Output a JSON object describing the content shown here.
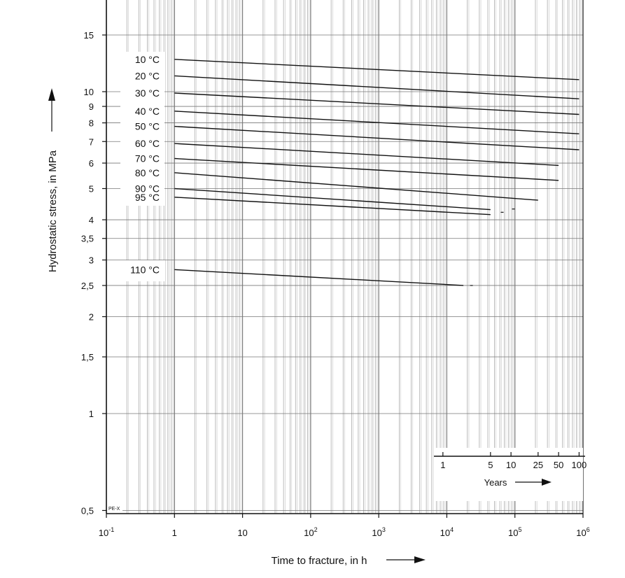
{
  "chart_data": {
    "type": "line",
    "scale": "log-log",
    "xlabel": "Time to fracture, in h",
    "ylabel": "Hydrostatic stress, in MPa",
    "xlim": [
      0.1,
      1000000
    ],
    "ylim": [
      0.5,
      20
    ],
    "grid": true,
    "material_tag": "PE-X",
    "x_ticks": [
      {
        "value": 0.1,
        "base": "10",
        "exp": "-1"
      },
      {
        "value": 1,
        "base": "1",
        "exp": ""
      },
      {
        "value": 10,
        "base": "10",
        "exp": ""
      },
      {
        "value": 100,
        "base": "10",
        "exp": "2"
      },
      {
        "value": 1000,
        "base": "10",
        "exp": "3"
      },
      {
        "value": 10000,
        "base": "10",
        "exp": "4"
      },
      {
        "value": 100000,
        "base": "10",
        "exp": "5"
      },
      {
        "value": 1000000,
        "base": "10",
        "exp": "6"
      }
    ],
    "y_ticks": [
      {
        "value": 15,
        "label": "15"
      },
      {
        "value": 10,
        "label": "10"
      },
      {
        "value": 9,
        "label": "9"
      },
      {
        "value": 8,
        "label": "8"
      },
      {
        "value": 7,
        "label": "7"
      },
      {
        "value": 6,
        "label": "6"
      },
      {
        "value": 5,
        "label": "5"
      },
      {
        "value": 4,
        "label": "4"
      },
      {
        "value": 3.5,
        "label": "3,5"
      },
      {
        "value": 3,
        "label": "3"
      },
      {
        "value": 2.5,
        "label": "2,5"
      },
      {
        "value": 2,
        "label": "2"
      },
      {
        "value": 1.5,
        "label": "1,5"
      },
      {
        "value": 1,
        "label": "1"
      },
      {
        "value": 0.5,
        "label": "0,5"
      }
    ],
    "years_scale": {
      "label": "Years",
      "ticks": [
        {
          "value": 1,
          "label": "1"
        },
        {
          "value": 5,
          "label": "5"
        },
        {
          "value": 10,
          "label": "10"
        },
        {
          "value": 25,
          "label": "25"
        },
        {
          "value": 50,
          "label": "50"
        },
        {
          "value": 100,
          "label": "100"
        }
      ]
    },
    "series": [
      {
        "name": "10 °C",
        "x": [
          1,
          876000
        ],
        "y": [
          12.6,
          10.9
        ]
      },
      {
        "name": "20 °C",
        "x": [
          1,
          876000
        ],
        "y": [
          11.2,
          9.5
        ]
      },
      {
        "name": "30 °C",
        "x": [
          1,
          876000
        ],
        "y": [
          9.9,
          8.5
        ]
      },
      {
        "name": "40 °C",
        "x": [
          1,
          876000
        ],
        "y": [
          8.7,
          7.4
        ]
      },
      {
        "name": "50 °C",
        "x": [
          1,
          876000
        ],
        "y": [
          7.8,
          6.6
        ]
      },
      {
        "name": "60 °C",
        "x": [
          1,
          438000
        ],
        "y": [
          6.9,
          5.9
        ]
      },
      {
        "name": "70 °C",
        "x": [
          1,
          438000
        ],
        "y": [
          6.2,
          5.3
        ]
      },
      {
        "name": "80 °C",
        "x": [
          1,
          219000
        ],
        "y": [
          5.6,
          4.6
        ]
      },
      {
        "name": "90 °C",
        "x": [
          1,
          43800
        ],
        "y": [
          5.0,
          4.3
        ]
      },
      {
        "name": "95 °C",
        "x": [
          1,
          43800
        ],
        "y": [
          4.7,
          4.15
        ]
      },
      {
        "name": "110 °C",
        "x": [
          1,
          17500
        ],
        "y": [
          2.8,
          2.5
        ]
      }
    ],
    "extension_marks": [
      {
        "x": 65000,
        "y": 4.22
      },
      {
        "x": 95000,
        "y": 4.32
      },
      {
        "x": 23000,
        "y": 2.5
      }
    ]
  }
}
